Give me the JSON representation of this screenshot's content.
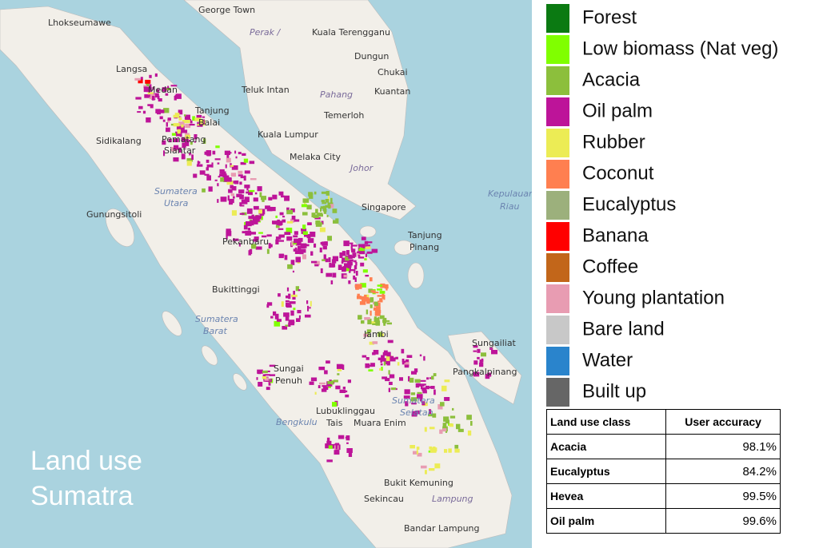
{
  "map": {
    "title_lines": [
      "Land use",
      "Sumatra"
    ],
    "places": [
      "George Town",
      "Lhokseumawe",
      "Kuala Terengganu",
      "Perak /",
      "Dungun",
      "Chukai",
      "Langsa",
      "Kuantan",
      "Medan",
      "Teluk Intan",
      "Pahang",
      "Tanjung",
      "Balai",
      "Temerloh",
      "Kuala Lumpur",
      "Sidikalang",
      "Pematang",
      "Siantar",
      "Melaka City",
      "Johor",
      "Sumatera",
      "Utara",
      "Singapore",
      "Kepulauan",
      "Riau",
      "Gunungsitoli",
      "Tanjung",
      "Pinang",
      "Pekanbaru",
      "Bukittinggi",
      "Sumatera",
      "Barat",
      "Jambi",
      "Sungailiat",
      "Pangkalpinang",
      "Sungai",
      "Penuh",
      "Lubuklinggau",
      "Bengkulu",
      "Tais",
      "Muara Enim",
      "Sumatera",
      "Selatan",
      "Bukit Kemuning",
      "Sekincau",
      "Lampung",
      "Bandar Lampung"
    ]
  },
  "legend": [
    {
      "name": "Forest",
      "color": "#0b7a12"
    },
    {
      "name": "Low biomass (Nat veg)",
      "color": "#80ff00"
    },
    {
      "name": "Acacia",
      "color": "#8cbf3c"
    },
    {
      "name": "Oil palm",
      "color": "#bd1499"
    },
    {
      "name": "Rubber",
      "color": "#ecec55"
    },
    {
      "name": "Coconut",
      "color": "#ff7f50"
    },
    {
      "name": "Eucalyptus",
      "color": "#9cb07c"
    },
    {
      "name": "Banana",
      "color": "#ff0000"
    },
    {
      "name": "Coffee",
      "color": "#c2661a"
    },
    {
      "name": "Young plantation",
      "color": "#e89cb2"
    },
    {
      "name": "Bare land",
      "color": "#c8c8c8"
    },
    {
      "name": "Water",
      "color": "#2a84cc"
    },
    {
      "name": "Built up",
      "color": "#666666"
    }
  ],
  "table": {
    "header": [
      "Land use class",
      "User accuracy"
    ],
    "rows": [
      [
        "Acacia",
        "98.1%"
      ],
      [
        "Eucalyptus",
        "84.2%"
      ],
      [
        "Hevea",
        "99.5%"
      ],
      [
        "Oil palm",
        "99.6%"
      ]
    ]
  }
}
